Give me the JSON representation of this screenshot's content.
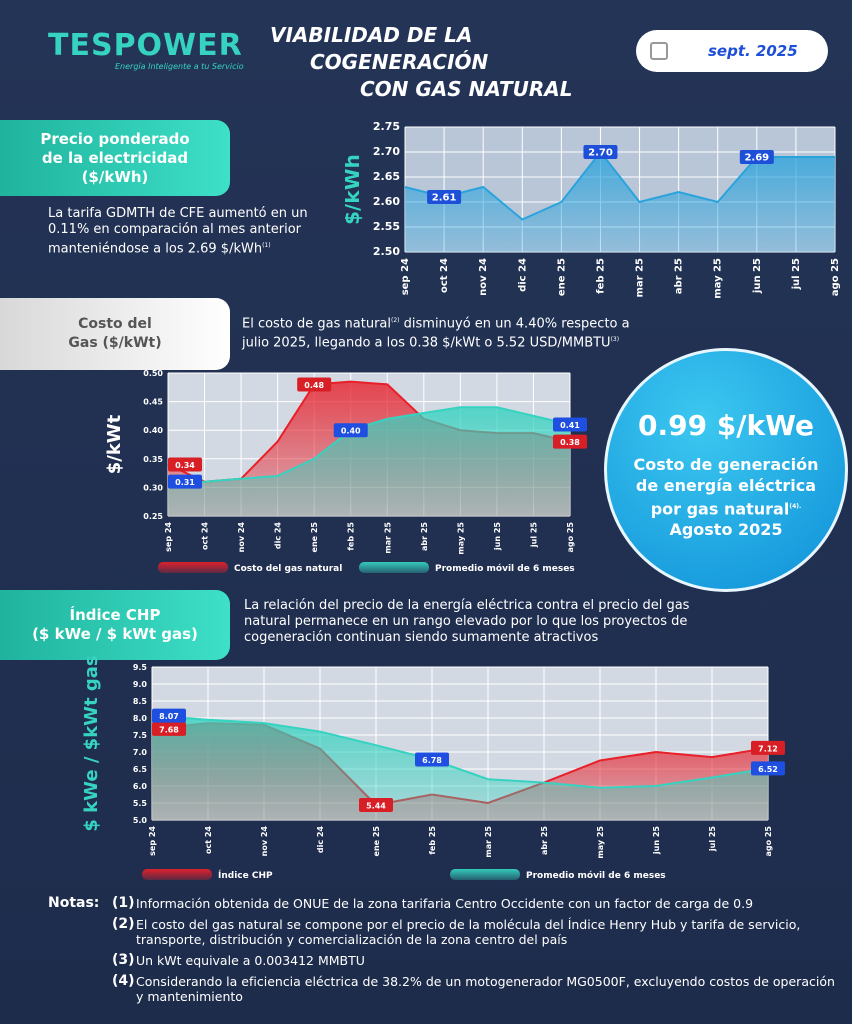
{
  "header": {
    "logo": "TESPOWER",
    "tagline": "Energía Inteligente a tu Servicio",
    "title_lines": [
      "VIABILIDAD DE LA",
      "COGENERACIÓN",
      "CON GAS NATURAL"
    ],
    "date": "sept. 2025"
  },
  "sections": [
    {
      "title_lines": [
        "Precio ponderado",
        "de la electricidad",
        "($/kWh)"
      ],
      "text": "La tarifa GDMTH de CFE aumentó en un 0.11% en comparación al mes anterior manteniéndose a los 2.69 $/kWh",
      "ref": "(1)"
    },
    {
      "title_lines": [
        "Costo del",
        "Gas ($/kWt)"
      ],
      "text_a": "El costo de gas natural",
      "ref_a": "(2)",
      "text_b": "disminuyó en un 4.40% respecto a julio 2025, llegando a los 0.38 $/kWt o 5.52 USD/MMBTU",
      "ref_b": "(3)"
    },
    {
      "title_lines": [
        "Índice CHP",
        "($ kWe / $ kWt gas)"
      ],
      "text": "La relación del precio de la energía eléctrica contra el precio del gas natural permanece en un rango elevado por lo que los proyectos de cogeneración continuan siendo sumamente atractivos"
    }
  ],
  "callout": {
    "value": "0.99 $/kWe",
    "text": "Costo de generación de energía eléctrica por gas natural",
    "ref": "(4).",
    "date": "Agosto 2025"
  },
  "chart_data": [
    {
      "type": "area",
      "ylabel": "$/kWh",
      "categories": [
        "sep 24",
        "oct 24",
        "nov 24",
        "dic 24",
        "ene 25",
        "feb 25",
        "mar 25",
        "abr 25",
        "may 25",
        "jun 25",
        "jul 25",
        "ago 25"
      ],
      "values": [
        2.63,
        2.61,
        2.63,
        2.565,
        2.6,
        2.7,
        2.6,
        2.62,
        2.6,
        2.69,
        2.69,
        2.69
      ],
      "value_labels": [
        null,
        "2.61",
        null,
        null,
        null,
        "2.70",
        null,
        null,
        null,
        "2.69",
        null,
        null
      ],
      "color": "#2aa3dc",
      "label_color": "#1e4fd8",
      "ylim": [
        2.5,
        2.75
      ],
      "yticks": [
        {
          "value": 2.5,
          "label": "2.50"
        },
        2.55,
        {
          "value": 2.6,
          "label": "2.60"
        },
        2.65,
        {
          "value": 2.7,
          "label": "2.70"
        },
        2.75
      ],
      "grid": true
    },
    {
      "type": "area",
      "ylabel": "$/kWt",
      "categories": [
        "sep 24",
        "oct 24",
        "nov 24",
        "dic 24",
        "ene 25",
        "feb 25",
        "mar 25",
        "abr 25",
        "may 25",
        "jun 25",
        "jul 25",
        "ago 25"
      ],
      "series": [
        {
          "name": "Costo del gas natural",
          "color": "#e8202a",
          "label_color": "#d81f26",
          "values": [
            0.34,
            0.31,
            0.315,
            0.38,
            0.48,
            0.485,
            0.48,
            0.42,
            0.4,
            0.395,
            0.395,
            0.38
          ],
          "value_labels": [
            "0.34",
            null,
            null,
            null,
            "0.48",
            null,
            null,
            null,
            null,
            null,
            null,
            "0.38"
          ]
        },
        {
          "name": "Promedio móvil de 6 meses",
          "color": "#35d3c0",
          "label_color": "#1f4fe0",
          "values": [
            0.31,
            0.31,
            0.315,
            0.32,
            0.35,
            0.4,
            0.42,
            0.43,
            0.44,
            0.44,
            0.425,
            0.41
          ],
          "value_labels": [
            "0.31",
            null,
            null,
            null,
            null,
            "0.40",
            null,
            null,
            null,
            null,
            null,
            "0.41"
          ]
        }
      ],
      "ylim": [
        0.25,
        0.5
      ],
      "yticks": [
        0.25,
        {
          "value": 0.3,
          "label": "0.30"
        },
        0.35,
        {
          "value": 0.4,
          "label": "0.40"
        },
        0.45,
        {
          "value": 0.5,
          "label": "0.50"
        }
      ],
      "grid": true
    },
    {
      "type": "area",
      "ylabel": "$ kWe / $kWt gas",
      "categories": [
        "sep 24",
        "oct 24",
        "nov 24",
        "dic 24",
        "ene 25",
        "feb 25",
        "mar 25",
        "abr 25",
        "may 25",
        "jun 25",
        "jul 25",
        "ago 25"
      ],
      "series": [
        {
          "name": "Índice CHP",
          "color": "#e8202a",
          "label_color": "#d81f26",
          "values": [
            7.68,
            7.85,
            7.8,
            7.1,
            5.44,
            5.75,
            5.5,
            6.1,
            6.75,
            7.0,
            6.85,
            7.12
          ],
          "value_labels": [
            "7.68",
            null,
            null,
            null,
            "5.44",
            null,
            null,
            null,
            null,
            null,
            null,
            "7.12"
          ]
        },
        {
          "name": "Promedio móvil de 6 meses",
          "color": "#35d3c0",
          "label_color": "#1f4fe0",
          "values": [
            8.07,
            7.95,
            7.85,
            7.6,
            7.2,
            6.78,
            6.2,
            6.1,
            5.95,
            6.0,
            6.25,
            6.52
          ],
          "value_labels": [
            "8.07",
            null,
            null,
            null,
            null,
            "6.78",
            null,
            null,
            null,
            null,
            null,
            "6.52"
          ]
        }
      ],
      "ylim": [
        5,
        9.5
      ],
      "yticks": [
        {
          "value": 5,
          "label": "5.0"
        },
        5.5,
        {
          "value": 6,
          "label": "6.0"
        },
        6.5,
        {
          "value": 7,
          "label": "7.0"
        },
        7.5,
        {
          "value": 8,
          "label": "8.0"
        },
        8.5,
        {
          "value": 9,
          "label": "9.0"
        },
        9.5
      ],
      "grid": true
    }
  ],
  "notes": {
    "label": "Notas:",
    "items": [
      {
        "num": "(1)",
        "text": "Información obtenida de ONUE de la zona tarifaria Centro Occidente con un factor de carga de 0.9"
      },
      {
        "num": "(2)",
        "text": "El costo del gas natural se compone por el precio de la molécula del Índice Henry Hub y tarifa de servicio, transporte, distribución y comercialización de la zona centro del país"
      },
      {
        "num": "(3)",
        "text": "Un kWt equivale a 0.003412 MMBTU"
      },
      {
        "num": "(4)",
        "text": "Considerando la eficiencia eléctrica de 38.2% de un motogenerador MG0500F, excluyendo costos de operación y mantenimiento"
      }
    ]
  }
}
